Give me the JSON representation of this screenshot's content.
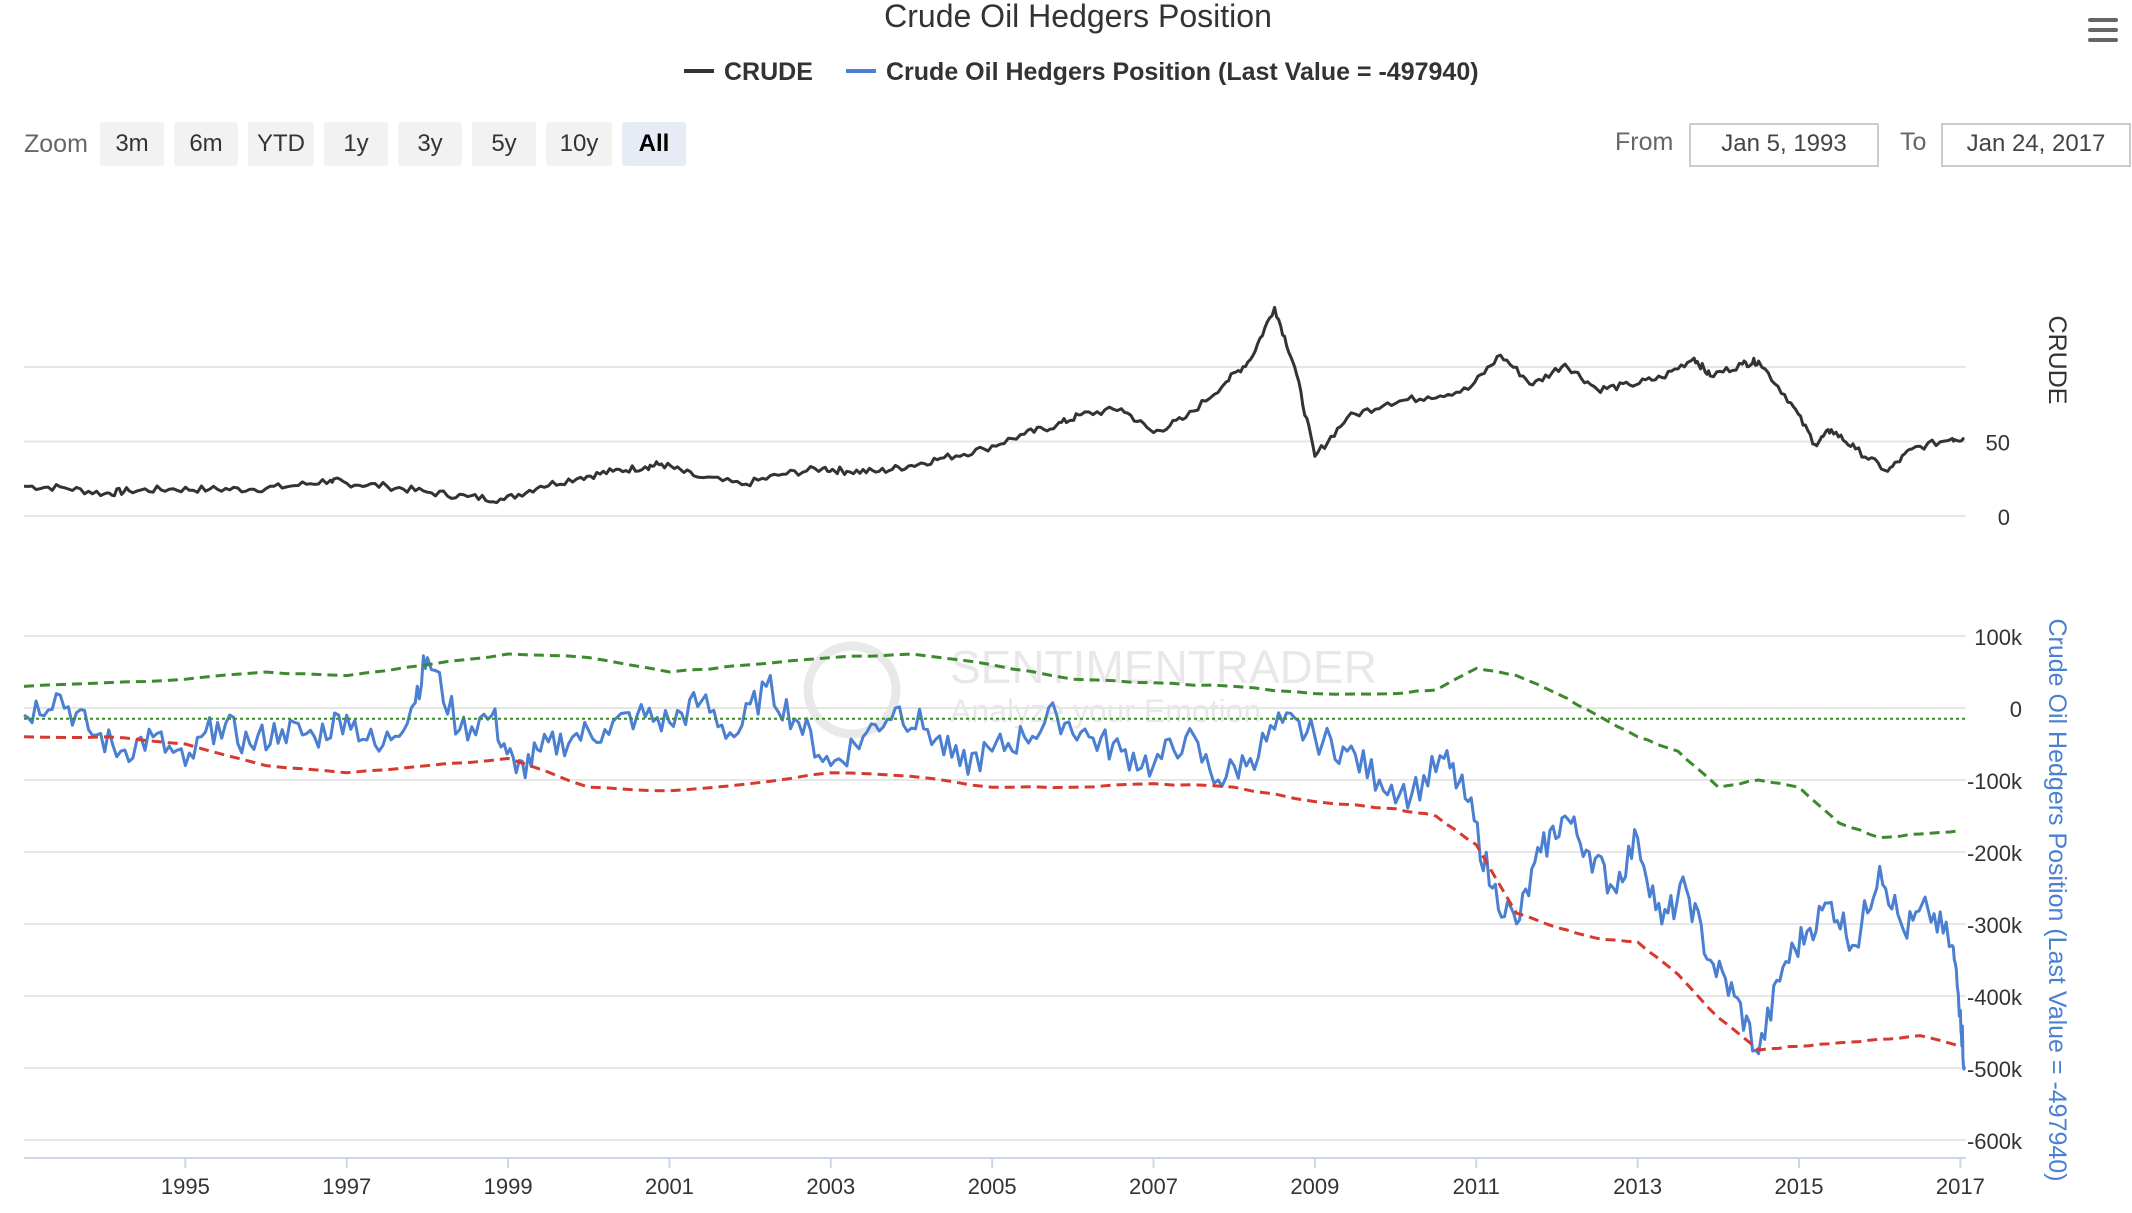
{
  "chart_data": {
    "type": "line",
    "title": "Crude Oil Hedgers Position",
    "legend": {
      "placement": "top-center",
      "items": [
        {
          "label": "CRUDE",
          "color": "#333333"
        },
        {
          "label": "Crude Oil Hedgers Position (Last Value = -497940)",
          "color": "#4a7fd1"
        }
      ]
    },
    "range_selector": {
      "label": "Zoom",
      "buttons": [
        "3m",
        "6m",
        "YTD",
        "1y",
        "3y",
        "5y",
        "10y",
        "All"
      ],
      "active": "All",
      "from_label": "From",
      "from_value": "Jan 5, 1993",
      "to_label": "To",
      "to_value": "Jan 24, 2017"
    },
    "watermark": {
      "line1": "SENTIMENTRADER",
      "line2": "Analyze your Emotion"
    },
    "xaxis": {
      "range": [
        1993.0,
        2017.07
      ],
      "ticks": [
        "1995",
        "1997",
        "1999",
        "2001",
        "2003",
        "2005",
        "2007",
        "2009",
        "2011",
        "2013",
        "2015",
        "2017"
      ]
    },
    "upper_panel": {
      "ylabel": "CRUDE",
      "ylim": [
        0,
        145
      ],
      "ticks": [
        "0",
        "50"
      ],
      "grid": true,
      "series": [
        {
          "name": "CRUDE",
          "color": "#333333",
          "x": [
            1993.0,
            1993.5,
            1994.0,
            1994.3,
            1994.8,
            1995.3,
            1995.8,
            1996.3,
            1996.8,
            1997.0,
            1997.5,
            1998.0,
            1998.5,
            1998.95,
            1999.4,
            1999.9,
            2000.3,
            2000.7,
            2000.9,
            2001.3,
            2001.9,
            2002.4,
            2002.9,
            2003.2,
            2003.6,
            2004.0,
            2004.4,
            2004.9,
            2005.4,
            2005.8,
            2006.1,
            2006.6,
            2007.0,
            2007.4,
            2007.9,
            2008.2,
            2008.5,
            2008.75,
            2009.0,
            2009.4,
            2009.9,
            2010.4,
            2010.9,
            2011.3,
            2011.7,
            2012.1,
            2012.5,
            2012.9,
            2013.3,
            2013.7,
            2013.9,
            2014.3,
            2014.5,
            2014.9,
            2015.2,
            2015.4,
            2015.7,
            2016.1,
            2016.4,
            2016.9,
            2017.05
          ],
          "values": [
            20,
            19,
            15,
            17,
            18,
            18,
            18,
            20,
            24,
            22,
            20,
            16,
            13,
            11,
            20,
            26,
            30,
            33,
            35,
            27,
            21,
            28,
            32,
            30,
            30,
            34,
            39,
            45,
            55,
            61,
            68,
            72,
            56,
            66,
            90,
            105,
            140,
            100,
            40,
            66,
            76,
            80,
            85,
            108,
            88,
            102,
            85,
            88,
            93,
            106,
            94,
            102,
            104,
            76,
            48,
            58,
            45,
            30,
            45,
            52,
            52
          ]
        }
      ]
    },
    "lower_panel": {
      "ylabel": "Crude Oil Hedgers Position (Last Value = -497940)",
      "ylim": [
        -600000,
        100000
      ],
      "ticks": [
        "100k",
        "0",
        "-100k",
        "-200k",
        "-300k",
        "-400k",
        "-500k",
        "-600k"
      ],
      "grid": true,
      "series": [
        {
          "name": "Crude Oil Hedgers Position (Last Value = -497940)",
          "color": "#4a7fd1",
          "x": [
            1993.0,
            1993.4,
            1993.8,
            1994.2,
            1994.6,
            1995.0,
            1995.4,
            1995.8,
            1996.2,
            1996.6,
            1997.0,
            1997.4,
            1997.8,
            1998.0,
            1998.4,
            1998.8,
            1999.1,
            1999.4,
            1999.8,
            2000.2,
            2000.6,
            2001.0,
            2001.4,
            2001.8,
            2002.2,
            2002.6,
            2003.0,
            2003.4,
            2003.8,
            2004.2,
            2004.6,
            2005.0,
            2005.4,
            2005.8,
            2006.2,
            2006.6,
            2007.0,
            2007.4,
            2007.8,
            2008.2,
            2008.6,
            2009.0,
            2009.4,
            2009.8,
            2010.2,
            2010.6,
            2010.9,
            2011.2,
            2011.5,
            2011.8,
            2012.1,
            2012.4,
            2012.7,
            2013.0,
            2013.3,
            2013.6,
            2013.9,
            2014.2,
            2014.5,
            2014.8,
            2015.1,
            2015.4,
            2015.7,
            2016.0,
            2016.3,
            2016.6,
            2016.9,
            2017.0,
            2017.05
          ],
          "values": [
            -10000,
            20000,
            -30000,
            -60000,
            -40000,
            -80000,
            -20000,
            -50000,
            -30000,
            -40000,
            -10000,
            -60000,
            0,
            70000,
            -30000,
            -10000,
            -90000,
            -60000,
            -40000,
            -30000,
            -10000,
            -20000,
            10000,
            -40000,
            30000,
            -20000,
            -80000,
            -40000,
            0,
            -30000,
            -80000,
            -60000,
            -40000,
            -10000,
            -40000,
            -60000,
            -80000,
            -40000,
            -100000,
            -70000,
            -20000,
            -40000,
            -60000,
            -100000,
            -120000,
            -70000,
            -130000,
            -250000,
            -300000,
            -200000,
            -150000,
            -200000,
            -250000,
            -180000,
            -300000,
            -250000,
            -350000,
            -400000,
            -480000,
            -360000,
            -310000,
            -270000,
            -330000,
            -220000,
            -310000,
            -280000,
            -330000,
            -420000,
            -497940
          ]
        },
        {
          "name": "upper band",
          "color": "#3d8a2e",
          "x": [
            1993.0,
            1994.0,
            1995.0,
            1996.0,
            1997.0,
            1998.0,
            1999.0,
            2000.0,
            2001.0,
            2002.0,
            2003.0,
            2004.0,
            2005.0,
            2006.0,
            2007.0,
            2008.0,
            2009.0,
            2010.0,
            2010.5,
            2011.0,
            2011.5,
            2012.0,
            2012.5,
            2013.0,
            2013.5,
            2014.0,
            2014.5,
            2015.0,
            2015.5,
            2016.0,
            2016.5,
            2017.0
          ],
          "values": [
            30000,
            35000,
            40000,
            50000,
            45000,
            60000,
            75000,
            70000,
            50000,
            60000,
            70000,
            75000,
            60000,
            40000,
            35000,
            30000,
            20000,
            20000,
            25000,
            55000,
            45000,
            20000,
            -10000,
            -40000,
            -60000,
            -110000,
            -100000,
            -110000,
            -160000,
            -180000,
            -175000,
            -170000
          ]
        },
        {
          "name": "lower band",
          "color": "#d63a2f",
          "x": [
            1993.0,
            1994.0,
            1995.0,
            1996.0,
            1997.0,
            1998.0,
            1999.0,
            2000.0,
            2001.0,
            2002.0,
            2003.0,
            2004.0,
            2005.0,
            2006.0,
            2007.0,
            2008.0,
            2009.0,
            2010.0,
            2010.5,
            2011.0,
            2011.5,
            2012.0,
            2012.5,
            2013.0,
            2013.5,
            2014.0,
            2014.5,
            2015.0,
            2015.5,
            2016.0,
            2016.5,
            2017.0
          ],
          "values": [
            -40000,
            -40000,
            -50000,
            -80000,
            -90000,
            -80000,
            -70000,
            -110000,
            -115000,
            -105000,
            -90000,
            -95000,
            -110000,
            -110000,
            -105000,
            -110000,
            -130000,
            -140000,
            -150000,
            -190000,
            -285000,
            -305000,
            -320000,
            -325000,
            -370000,
            -430000,
            -475000,
            -470000,
            -465000,
            -460000,
            -455000,
            -470000
          ]
        },
        {
          "name": "zero line",
          "color": "#3d8a2e",
          "x": [
            1993.0,
            2017.07
          ],
          "values": [
            -15000,
            -15000
          ]
        }
      ]
    }
  },
  "colors": {
    "accent": "#4a7fd1",
    "crude": "#333333",
    "upper_band": "#3d8a2e",
    "lower_band": "#d63a2f"
  },
  "icons": {
    "menu": "hamburger-menu-icon"
  }
}
